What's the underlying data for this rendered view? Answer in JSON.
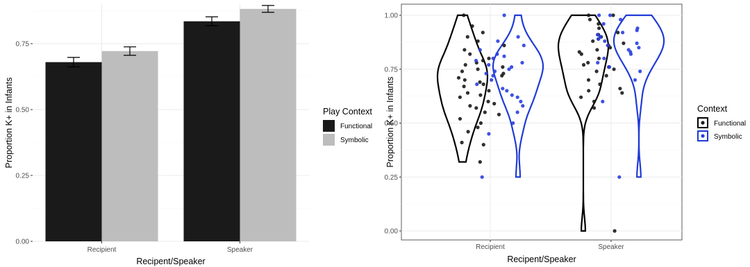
{
  "chart_data": [
    {
      "type": "bar",
      "xlabel": "Recipent/Speaker",
      "ylabel": "Proportion K+ in Infants",
      "categories": [
        "Recipient",
        "Speaker"
      ],
      "ylim": [
        0,
        0.9
      ],
      "yticks": [
        "0.00",
        "0.25",
        "0.50",
        "0.75"
      ],
      "legend": {
        "title": "Play Context",
        "placement": "right"
      },
      "series": [
        {
          "name": "Functional",
          "color": "#1a1a1a",
          "values": [
            0.68,
            0.835
          ],
          "error": [
            0.018,
            0.017
          ]
        },
        {
          "name": "Symbolic",
          "color": "#bdbdbd",
          "values": [
            0.722,
            0.882
          ],
          "error": [
            0.016,
            0.013
          ]
        }
      ],
      "grid": true
    },
    {
      "type": "violin",
      "xlabel": "Recipent/Speaker",
      "ylabel": "Proportion K+ in Infants",
      "categories": [
        "Recipient",
        "Speaker"
      ],
      "ylim": [
        0,
        1
      ],
      "yticks": [
        "0.00",
        "0.25",
        "0.50",
        "0.75",
        "1.00"
      ],
      "legend": {
        "title": "Context",
        "placement": "right"
      },
      "series": [
        {
          "name": "Functional",
          "color": "#000000",
          "point_color": "#1a1a1a",
          "ranges": [
            [
              0.32,
              1.0
            ],
            [
              0.0,
              1.0
            ]
          ],
          "points": [
            [
              0,
              0.32
            ],
            [
              0,
              0.4
            ],
            [
              0,
              0.41
            ],
            [
              0,
              0.46
            ],
            [
              0,
              0.48
            ],
            [
              0,
              0.5
            ],
            [
              0,
              0.52
            ],
            [
              0,
              0.54
            ],
            [
              0,
              0.55
            ],
            [
              0,
              0.57
            ],
            [
              0,
              0.58
            ],
            [
              0,
              0.59
            ],
            [
              0,
              0.6
            ],
            [
              0,
              0.62
            ],
            [
              0,
              0.63
            ],
            [
              0,
              0.64
            ],
            [
              0,
              0.65
            ],
            [
              0,
              0.67
            ],
            [
              0,
              0.68
            ],
            [
              0,
              0.69
            ],
            [
              0,
              0.7
            ],
            [
              0,
              0.71
            ],
            [
              0,
              0.72
            ],
            [
              0,
              0.73
            ],
            [
              0,
              0.74
            ],
            [
              0,
              0.75
            ],
            [
              0,
              0.76
            ],
            [
              0,
              0.77
            ],
            [
              0,
              0.78
            ],
            [
              0,
              0.79
            ],
            [
              0,
              0.8
            ],
            [
              0,
              0.82
            ],
            [
              0,
              0.84
            ],
            [
              0,
              0.86
            ],
            [
              0,
              0.88
            ],
            [
              0,
              0.9
            ],
            [
              0,
              0.92
            ],
            [
              0,
              0.95
            ],
            [
              0,
              1.0
            ],
            [
              1,
              0.0
            ],
            [
              1,
              0.57
            ],
            [
              1,
              0.6
            ],
            [
              1,
              0.62
            ],
            [
              1,
              0.64
            ],
            [
              1,
              0.65
            ],
            [
              1,
              0.66
            ],
            [
              1,
              0.68
            ],
            [
              1,
              0.7
            ],
            [
              1,
              0.72
            ],
            [
              1,
              0.74
            ],
            [
              1,
              0.75
            ],
            [
              1,
              0.76
            ],
            [
              1,
              0.77
            ],
            [
              1,
              0.78
            ],
            [
              1,
              0.8
            ],
            [
              1,
              0.82
            ],
            [
              1,
              0.83
            ],
            [
              1,
              0.84
            ],
            [
              1,
              0.85
            ],
            [
              1,
              0.86
            ],
            [
              1,
              0.87
            ],
            [
              1,
              0.88
            ],
            [
              1,
              0.89
            ],
            [
              1,
              0.9
            ],
            [
              1,
              0.91
            ],
            [
              1,
              0.92
            ],
            [
              1,
              0.94
            ],
            [
              1,
              0.96
            ],
            [
              1,
              0.98
            ],
            [
              1,
              1.0
            ],
            [
              1,
              1.0
            ]
          ]
        },
        {
          "name": "Symbolic",
          "color": "#1f3bd6",
          "point_color": "#2a3fe0",
          "ranges": [
            [
              0.25,
              1.0
            ],
            [
              0.25,
              1.0
            ]
          ],
          "points": [
            [
              0,
              0.25
            ],
            [
              0,
              0.45
            ],
            [
              0,
              0.5
            ],
            [
              0,
              0.55
            ],
            [
              0,
              0.58
            ],
            [
              0,
              0.6
            ],
            [
              0,
              0.62
            ],
            [
              0,
              0.63
            ],
            [
              0,
              0.65
            ],
            [
              0,
              0.66
            ],
            [
              0,
              0.68
            ],
            [
              0,
              0.7
            ],
            [
              0,
              0.72
            ],
            [
              0,
              0.73
            ],
            [
              0,
              0.74
            ],
            [
              0,
              0.75
            ],
            [
              0,
              0.76
            ],
            [
              0,
              0.77
            ],
            [
              0,
              0.78
            ],
            [
              0,
              0.79
            ],
            [
              0,
              0.8
            ],
            [
              0,
              0.81
            ],
            [
              0,
              0.82
            ],
            [
              0,
              0.84
            ],
            [
              0,
              0.86
            ],
            [
              0,
              0.88
            ],
            [
              0,
              0.9
            ],
            [
              0,
              1.0
            ],
            [
              1,
              0.25
            ],
            [
              1,
              0.6
            ],
            [
              1,
              0.7
            ],
            [
              1,
              0.74
            ],
            [
              1,
              0.76
            ],
            [
              1,
              0.78
            ],
            [
              1,
              0.8
            ],
            [
              1,
              0.82
            ],
            [
              1,
              0.83
            ],
            [
              1,
              0.84
            ],
            [
              1,
              0.85
            ],
            [
              1,
              0.86
            ],
            [
              1,
              0.87
            ],
            [
              1,
              0.88
            ],
            [
              1,
              0.89
            ],
            [
              1,
              0.9
            ],
            [
              1,
              0.91
            ],
            [
              1,
              0.92
            ],
            [
              1,
              0.93
            ],
            [
              1,
              0.94
            ],
            [
              1,
              0.96
            ],
            [
              1,
              0.98
            ],
            [
              1,
              1.0
            ],
            [
              1,
              1.0
            ]
          ]
        }
      ],
      "grid": true
    }
  ]
}
